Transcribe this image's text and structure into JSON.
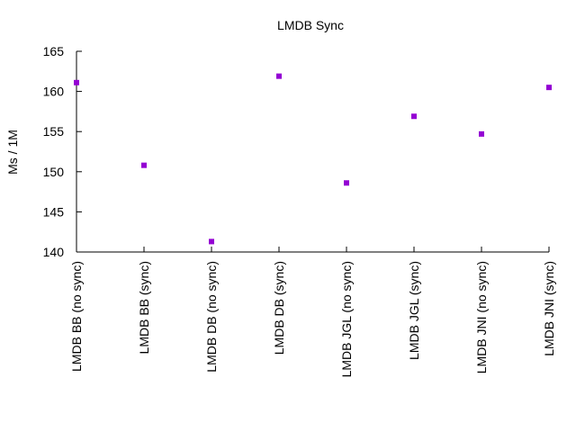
{
  "chart_data": {
    "type": "scatter",
    "title": "LMDB Sync",
    "xlabel": "",
    "ylabel": "Ms / 1M",
    "categories": [
      "LMDB BB (no sync)",
      "LMDB BB (sync)",
      "LMDB DB (no sync)",
      "LMDB DB (sync)",
      "LMDB JGL (no sync)",
      "LMDB JGL (sync)",
      "LMDB JNI (no sync)",
      "LMDB JNI (sync)"
    ],
    "values": [
      161.1,
      150.8,
      141.3,
      161.9,
      148.6,
      156.9,
      154.7,
      160.5
    ],
    "ylim": [
      140,
      165
    ],
    "yticks": [
      140,
      145,
      150,
      155,
      160,
      165
    ],
    "marker_color": "#9400d3",
    "grid": false,
    "legend": "none"
  }
}
